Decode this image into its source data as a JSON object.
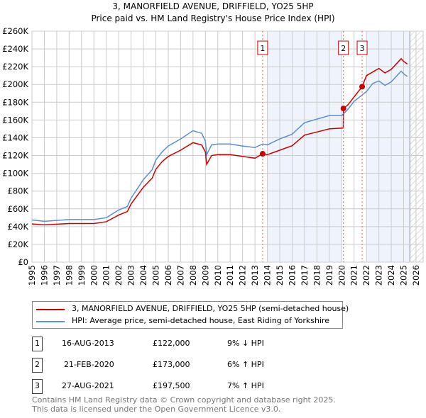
{
  "chart_data": {
    "type": "line",
    "title": "3, MANORFIELD AVENUE, DRIFFIELD, YO25 5HP",
    "subtitle": "Price paid vs. HM Land Registry's House Price Index (HPI)",
    "xlim": [
      1995,
      2026
    ],
    "ylim": [
      0,
      260000
    ],
    "x_ticks": [
      "1995",
      "1996",
      "1997",
      "1998",
      "1999",
      "2000",
      "2001",
      "2002",
      "2003",
      "2004",
      "2005",
      "2006",
      "2007",
      "2008",
      "2009",
      "2010",
      "2011",
      "2012",
      "2013",
      "2014",
      "2015",
      "2016",
      "2017",
      "2018",
      "2019",
      "2020",
      "2021",
      "2022",
      "2023",
      "2024",
      "2025",
      "2026"
    ],
    "y_ticks": [
      {
        "v": 0,
        "l": "£0"
      },
      {
        "v": 20000,
        "l": "£20K"
      },
      {
        "v": 40000,
        "l": "£40K"
      },
      {
        "v": 60000,
        "l": "£60K"
      },
      {
        "v": 80000,
        "l": "£80K"
      },
      {
        "v": 100000,
        "l": "£100K"
      },
      {
        "v": 120000,
        "l": "£120K"
      },
      {
        "v": 140000,
        "l": "£140K"
      },
      {
        "v": 160000,
        "l": "£160K"
      },
      {
        "v": 180000,
        "l": "£180K"
      },
      {
        "v": 200000,
        "l": "£200K"
      },
      {
        "v": 220000,
        "l": "£220K"
      },
      {
        "v": 240000,
        "l": "£240K"
      },
      {
        "v": 260000,
        "l": "£260K"
      }
    ],
    "grid": true,
    "series": [
      {
        "name": "3, MANORFIELD AVENUE, DRIFFIELD, YO25 5HP (semi-detached house)",
        "color": "#cc0000",
        "x": [
          1995,
          1996,
          1998,
          2000,
          2001,
          2002,
          2002.7,
          2003,
          2004,
          2004.7,
          2005,
          2005.5,
          2006,
          2007,
          2008,
          2008.7,
          2009,
          2009.1,
          2009.5,
          2010,
          2011,
          2012,
          2013,
          2013.62,
          2014,
          2015,
          2016,
          2017,
          2018,
          2019,
          2020.13,
          2020.14,
          2020.5,
          2021,
          2021.65,
          2022,
          2022.5,
          2023,
          2023.5,
          2024,
          2024.8,
          2025,
          2025.3
        ],
        "y": [
          43000,
          42000,
          43500,
          43500,
          45500,
          53000,
          57000,
          65500,
          84500,
          94500,
          104500,
          113000,
          119000,
          126000,
          134500,
          132000,
          124000,
          110000,
          120000,
          121000,
          121000,
          119000,
          117000,
          122000,
          121000,
          126000,
          131000,
          143000,
          146500,
          150000,
          151000,
          173000,
          177000,
          186000,
          197500,
          210000,
          214000,
          218000,
          213000,
          217000,
          229000,
          226000,
          223000
        ]
      },
      {
        "name": "HPI: Average price, semi-detached house, East Riding of Yorkshire",
        "color": "#5b8fd0",
        "x": [
          1995,
          1996,
          1998,
          2000,
          2001,
          2002,
          2002.7,
          2003,
          2004,
          2004.7,
          2005,
          2005.5,
          2006,
          2007,
          2008,
          2008.7,
          2009,
          2009.1,
          2009.5,
          2010,
          2011,
          2012,
          2013,
          2013.62,
          2014,
          2015,
          2016,
          2017,
          2018,
          2019,
          2020,
          2020.5,
          2021,
          2022,
          2022.5,
          2023,
          2023.5,
          2024,
          2024.8,
          2025,
          2025.3
        ],
        "y": [
          47500,
          46000,
          48000,
          48000,
          50000,
          58700,
          62700,
          72000,
          93000,
          104000,
          115000,
          124000,
          130700,
          138700,
          148000,
          145000,
          136000,
          121000,
          132000,
          133000,
          133000,
          130700,
          129000,
          133000,
          132000,
          138700,
          144000,
          157000,
          161000,
          165000,
          165000,
          172000,
          181000,
          192000,
          201000,
          204000,
          199000,
          203000,
          215000,
          212000,
          209000
        ]
      }
    ],
    "sales": [
      {
        "n": "1",
        "date": "16-AUG-2013",
        "x": 2013.62,
        "price": "£122,000",
        "value": 122000,
        "hpi": "9% ↓ HPI"
      },
      {
        "n": "2",
        "date": "21-FEB-2020",
        "x": 2020.14,
        "price": "£173,000",
        "value": 173000,
        "hpi": "6% ↑ HPI"
      },
      {
        "n": "3",
        "date": "27-AUG-2021",
        "x": 2021.65,
        "price": "£197,500",
        "value": 197500,
        "hpi": "7% ↑ HPI"
      }
    ],
    "shaded_ranges": [
      [
        2014,
        2020
      ],
      [
        2022,
        2025.5
      ]
    ],
    "hatched_from": 2025.5
  },
  "footer": {
    "line1": "Contains HM Land Registry data © Crown copyright and database right 2025.",
    "line2": "This data is licensed under the Open Government Licence v3.0."
  }
}
